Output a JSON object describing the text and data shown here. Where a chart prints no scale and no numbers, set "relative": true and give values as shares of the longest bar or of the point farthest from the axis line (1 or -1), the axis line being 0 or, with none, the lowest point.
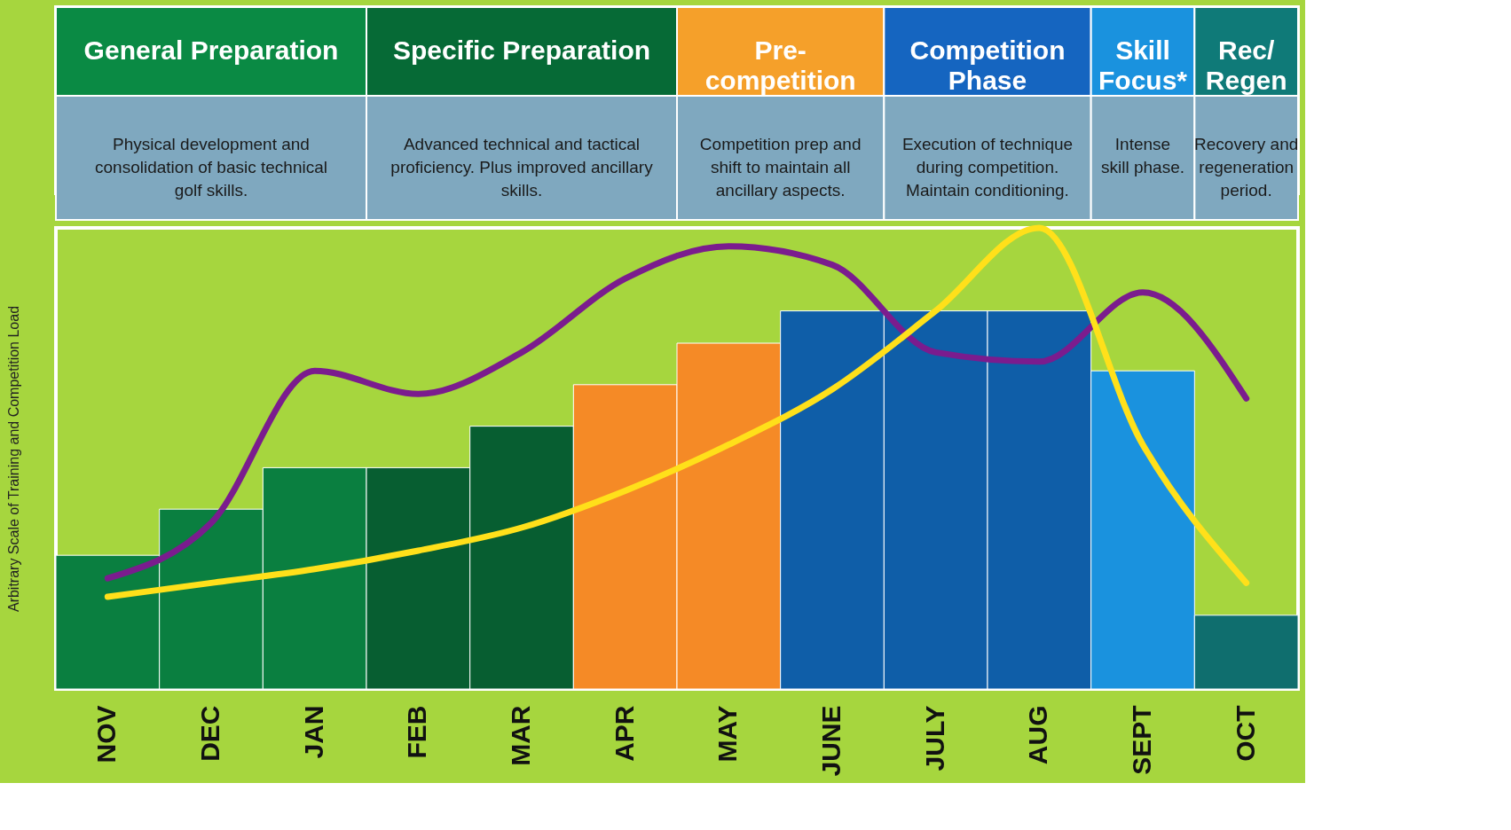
{
  "chart_data": {
    "type": "bar",
    "relative": true,
    "ylabel": "Arbitrary Scale of Training and Competition Load",
    "categories": [
      "NOV",
      "DEC",
      "JAN",
      "FEB",
      "MAR",
      "APR",
      "MAY",
      "JUNE",
      "JULY",
      "AUG",
      "SEPT",
      "OCT"
    ],
    "values": [
      0.29,
      0.39,
      0.48,
      0.48,
      0.57,
      0.66,
      0.75,
      0.82,
      0.82,
      0.82,
      0.69,
      0.16
    ],
    "colors": [
      "#0a7f40",
      "#0a7f40",
      "#0a7f40",
      "#075e31",
      "#075e31",
      "#f58a26",
      "#f58a26",
      "#0f5ea8",
      "#0f5ea8",
      "#0f5ea8",
      "#1a92de",
      "#0f6e6e"
    ],
    "series": [
      {
        "type": "line",
        "color": "#7b1c8e",
        "values": [
          0.24,
          0.36,
          0.69,
          0.64,
          0.73,
          0.89,
          0.96,
          0.92,
          0.73,
          0.71,
          0.86,
          0.63
        ]
      },
      {
        "type": "line",
        "color": "#ffe01a",
        "values": [
          0.2,
          0.23,
          0.26,
          0.3,
          0.35,
          0.43,
          0.53,
          0.65,
          0.82,
          1.0,
          0.53,
          0.23
        ]
      }
    ],
    "annotations": [
      "General Preparation",
      "Physical development and consolidation of basic technical golf skills.",
      "Specific Preparation",
      "Advanced technical and tactical proficiency. Plus improved ancillary skills.",
      "Pre-competition",
      "Competition prep and shift to maintain all ancillary aspects.",
      "Competition Phase",
      "Execution of technique during competition. Maintain conditioning.",
      "Skill Focus*",
      "Intense skill phase.",
      "Rec/ Regen",
      "Recovery and regeneration period."
    ]
  }
}
